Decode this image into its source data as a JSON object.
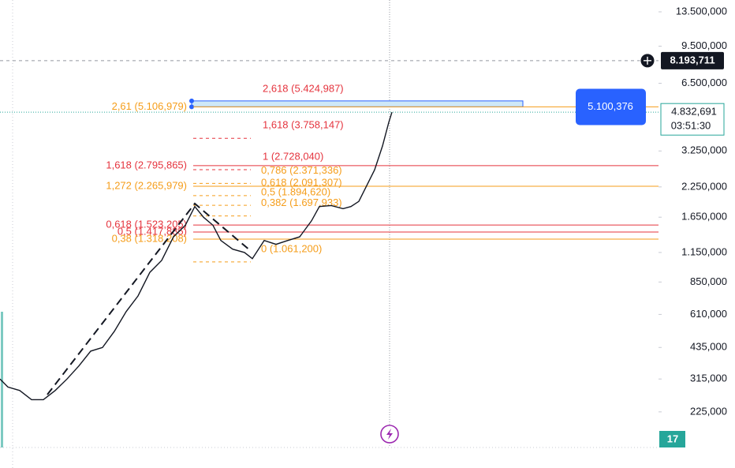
{
  "chart_data": {
    "type": "line",
    "log_scale": true,
    "color": "#131722",
    "x": [
      0,
      2,
      5,
      8,
      11,
      14,
      17,
      20,
      23,
      26,
      29,
      32,
      35,
      38,
      41,
      44,
      47,
      49.4,
      51.6,
      54,
      56,
      59,
      62,
      64,
      67,
      70,
      73,
      76,
      79,
      81,
      84,
      87,
      89,
      91,
      93,
      95,
      97,
      98.6,
      99.4
    ],
    "values": [
      315000,
      290000,
      280000,
      255000,
      255000,
      280000,
      315000,
      360000,
      419000,
      435000,
      513000,
      628000,
      737000,
      938000,
      1060000,
      1350000,
      1520000,
      1840000,
      1650000,
      1520000,
      1300000,
      1190000,
      1150000,
      1080000,
      1300000,
      1250000,
      1300000,
      1350000,
      1590000,
      1840000,
      1860000,
      1800000,
      1840000,
      1940000,
      2280000,
      2680000,
      3420000,
      4360000,
      4830000
    ],
    "xlim": [
      0,
      167
    ],
    "ylim": [
      155000,
      15240000
    ],
    "yticks": [
      {
        "value": 13500000,
        "label": "13.500,000"
      },
      {
        "value": 9500000,
        "label": "9.500,000"
      },
      {
        "value": 6500000,
        "label": "6.500,000"
      },
      {
        "value": 3250000,
        "label": "3.250,000"
      },
      {
        "value": 2250000,
        "label": "2.250,000"
      },
      {
        "value": 1650000,
        "label": "1.650,000"
      },
      {
        "value": 1150000,
        "label": "1.150,000"
      },
      {
        "value": 850000,
        "label": "850,000"
      },
      {
        "value": 610000,
        "label": "610,000"
      },
      {
        "value": 435000,
        "label": "435,000"
      },
      {
        "value": 315000,
        "label": "315,000"
      },
      {
        "value": 225000,
        "label": "225,000"
      }
    ],
    "fib_left": [
      {
        "label": "2,61 (5.106,979)",
        "value": 5106979,
        "color": "#f59d1a"
      },
      {
        "label": "1,618 (2.795,865)",
        "value": 2795865,
        "color": "#e5343e"
      },
      {
        "label": "1,272 (2.265,979)",
        "value": 2265979,
        "color": "#f59d1a"
      },
      {
        "label": "0,618 (1.523,205)",
        "value": 1523205,
        "color": "#e5343e"
      },
      {
        "label": "0,5 (1.417,885)",
        "value": 1417885,
        "color": "#e5343e"
      },
      {
        "label": "0,38 (1.318,208)",
        "value": 1318208,
        "color": "#f59d1a"
      }
    ],
    "fib_right": [
      {
        "label": "2,618 (5.424,987)",
        "value": 5424987,
        "color": "#e5343e"
      },
      {
        "label": "1,618 (3.758,147)",
        "value": 3758147,
        "color": "#e5343e"
      },
      {
        "label": "1 (2.728,040)",
        "value": 2728040,
        "color": "#e5343e"
      },
      {
        "label": "0,786 (2.371,336)",
        "value": 2371336,
        "color": "#f59d1a"
      },
      {
        "label": "0,618 (2.091,307)",
        "value": 2091307,
        "color": "#f59d1a"
      },
      {
        "label": "0,5 (1.894,620)",
        "value": 1894620,
        "color": "#f59d1a"
      },
      {
        "label": "0,382 (1.697,933)",
        "value": 1697933,
        "color": "#f59d1a"
      },
      {
        "label": "0 (1.061,200)",
        "value": 1061200,
        "color": "#f59d1a"
      }
    ],
    "crosshair": {
      "value": 8193711,
      "label": "8.193,711"
    },
    "last_price": {
      "value": 4832691,
      "label": "4.832,691",
      "countdown": "03:51:30"
    },
    "box_price": {
      "value": 5100376,
      "label": "5.100,376"
    },
    "badge": "17"
  }
}
